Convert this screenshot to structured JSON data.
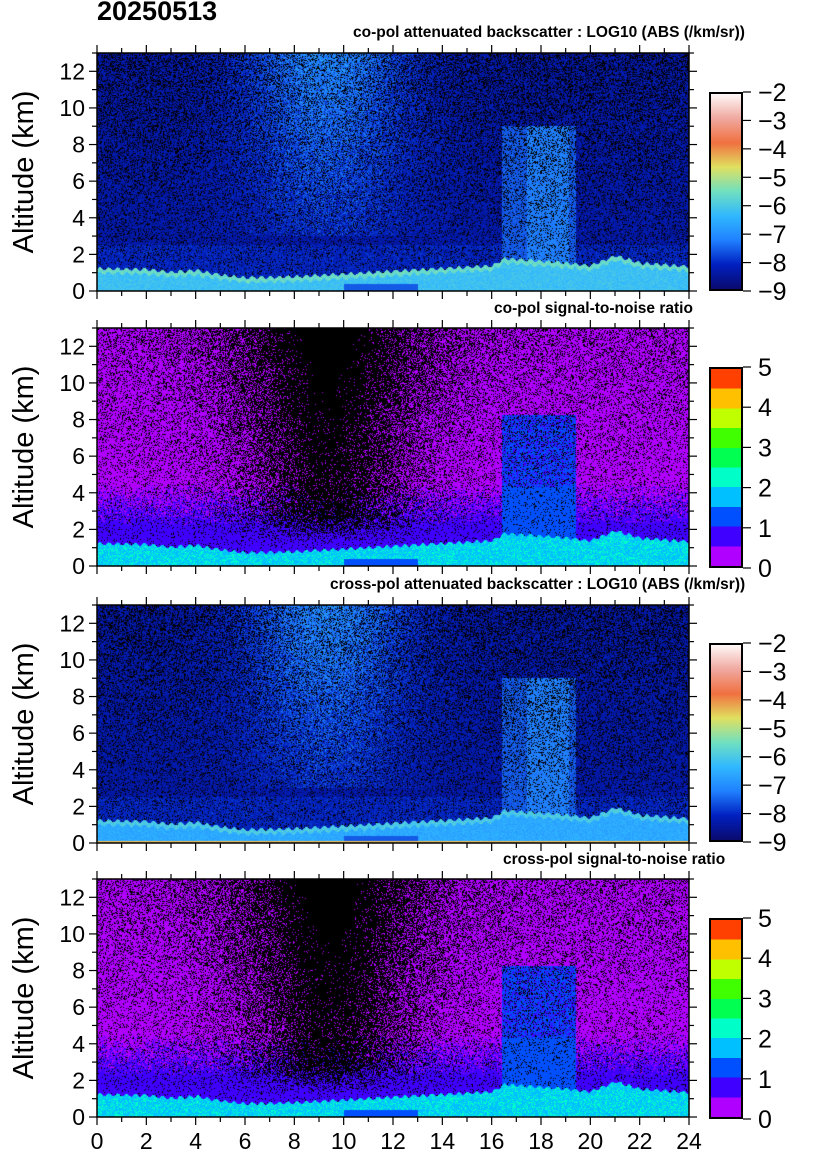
{
  "date_label": "20250513",
  "chart_data": [
    {
      "type": "heatmap",
      "title": "co-pol attenuated backscatter : LOG10 (ABS (/km/sr))",
      "ylabel": "Altitude (km)",
      "xlim": [
        0,
        24
      ],
      "ylim": [
        0,
        13
      ],
      "yticks": [
        0,
        2,
        4,
        6,
        8,
        10,
        12
      ],
      "colorbar": {
        "range": [
          -9,
          -2
        ],
        "ticks": [
          -2,
          -3,
          -4,
          -5,
          -6,
          -7,
          -8,
          -9
        ],
        "colors": [
          "#0a0a6e",
          "#0020c0",
          "#2080ff",
          "#30b8ff",
          "#70e0c0",
          "#e0e060",
          "#f07040",
          "#f0a8a0",
          "#fff8f8"
        ]
      }
    },
    {
      "type": "heatmap",
      "title": "co-pol signal-to-noise ratio",
      "ylabel": "Altitude (km)",
      "xlim": [
        0,
        24
      ],
      "ylim": [
        0,
        13
      ],
      "yticks": [
        0,
        2,
        4,
        6,
        8,
        10,
        12
      ],
      "colorbar": {
        "range": [
          0,
          5
        ],
        "ticks": [
          5,
          4,
          3,
          2,
          1,
          0
        ],
        "colors": [
          "#b000ff",
          "#4000ff",
          "#0050ff",
          "#00c0ff",
          "#00ffc8",
          "#00ff50",
          "#40ff00",
          "#c0ff00",
          "#ffc000",
          "#ff4000"
        ]
      }
    },
    {
      "type": "heatmap",
      "title": "cross-pol attenuated backscatter : LOG10 (ABS (/km/sr))",
      "ylabel": "Altitude (km)",
      "xlim": [
        0,
        24
      ],
      "ylim": [
        0,
        13
      ],
      "yticks": [
        0,
        2,
        4,
        6,
        8,
        10,
        12
      ],
      "colorbar": {
        "range": [
          -9,
          -2
        ],
        "ticks": [
          -2,
          -3,
          -4,
          -5,
          -6,
          -7,
          -8,
          -9
        ],
        "colors": [
          "#0a0a6e",
          "#0020c0",
          "#2080ff",
          "#30b8ff",
          "#70e0c0",
          "#e0e060",
          "#f07040",
          "#f0a8a0",
          "#fff8f8"
        ]
      }
    },
    {
      "type": "heatmap",
      "title": "cross-pol signal-to-noise ratio",
      "ylabel": "Altitude (km)",
      "xlim": [
        0,
        24
      ],
      "ylim": [
        0,
        13
      ],
      "yticks": [
        0,
        2,
        4,
        6,
        8,
        10,
        12
      ],
      "xticks": [
        0,
        2,
        4,
        6,
        8,
        10,
        12,
        14,
        16,
        18,
        20,
        22,
        24
      ],
      "colorbar": {
        "range": [
          0,
          5
        ],
        "ticks": [
          5,
          4,
          3,
          2,
          1,
          0
        ],
        "colors": [
          "#b000ff",
          "#4000ff",
          "#0050ff",
          "#00c0ff",
          "#00ffc8",
          "#00ff50",
          "#40ff00",
          "#c0ff00",
          "#ffc000",
          "#ff4000"
        ]
      }
    }
  ]
}
